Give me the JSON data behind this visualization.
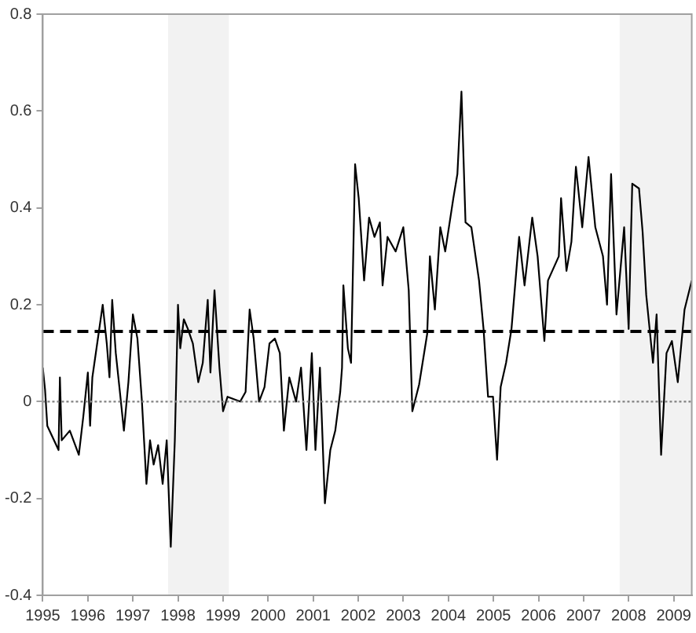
{
  "chart_data": {
    "type": "line",
    "x": [
      1995.0,
      1995.05,
      1995.1,
      1995.35,
      1995.38,
      1995.42,
      1995.6,
      1995.8,
      1995.9,
      1996.0,
      1996.05,
      1996.1,
      1996.33,
      1996.42,
      1996.48,
      1996.54,
      1996.62,
      1996.7,
      1996.8,
      1996.9,
      1997.0,
      1997.1,
      1997.2,
      1997.3,
      1997.38,
      1997.46,
      1997.56,
      1997.66,
      1997.75,
      1997.84,
      1997.93,
      1998.0,
      1998.05,
      1998.13,
      1998.22,
      1998.33,
      1998.45,
      1998.55,
      1998.66,
      1998.72,
      1998.81,
      1998.92,
      1999.0,
      1999.1,
      1999.38,
      1999.5,
      1999.59,
      1999.68,
      1999.8,
      1999.92,
      2000.03,
      2000.15,
      2000.26,
      2000.35,
      2000.47,
      2000.62,
      2000.73,
      2000.85,
      2000.97,
      2001.05,
      2001.15,
      2001.26,
      2001.38,
      2001.49,
      2001.6,
      2001.64,
      2001.67,
      2001.77,
      2001.84,
      2001.93,
      2002.01,
      2002.13,
      2002.24,
      2002.36,
      2002.48,
      2002.54,
      2002.65,
      2002.83,
      2003.0,
      2003.12,
      2003.2,
      2003.35,
      2003.53,
      2003.59,
      2003.7,
      2003.82,
      2003.93,
      2004.11,
      2004.2,
      2004.29,
      2004.38,
      2004.51,
      2004.68,
      2004.78,
      2004.88,
      2004.99,
      2005.08,
      2005.16,
      2005.28,
      2005.4,
      2005.57,
      2005.69,
      2005.86,
      2005.98,
      2006.13,
      2006.21,
      2006.45,
      2006.5,
      2006.62,
      2006.73,
      2006.83,
      2006.97,
      2007.11,
      2007.26,
      2007.43,
      2007.52,
      2007.61,
      2007.73,
      2007.9,
      2008.0,
      2008.08,
      2008.23,
      2008.31,
      2008.39,
      2008.54,
      2008.62,
      2008.72,
      2008.84,
      2008.96,
      2009.09,
      2009.24,
      2009.4
    ],
    "series": [
      {
        "color": "#000000",
        "values": [
          0.07,
          0.025,
          -0.05,
          -0.1,
          0.05,
          -0.08,
          -0.06,
          -0.11,
          -0.03,
          0.06,
          -0.05,
          0.05,
          0.2,
          0.12,
          0.05,
          0.21,
          0.1,
          0.03,
          -0.06,
          0.04,
          0.18,
          0.13,
          0.0,
          -0.17,
          -0.08,
          -0.13,
          -0.09,
          -0.17,
          -0.08,
          -0.3,
          -0.08,
          0.2,
          0.11,
          0.17,
          0.15,
          0.12,
          0.04,
          0.08,
          0.21,
          0.06,
          0.23,
          0.07,
          -0.02,
          0.01,
          0.0,
          0.02,
          0.19,
          0.13,
          0.0,
          0.03,
          0.12,
          0.13,
          0.1,
          -0.06,
          0.05,
          0.0,
          0.07,
          -0.1,
          0.1,
          -0.1,
          0.07,
          -0.21,
          -0.1,
          -0.06,
          0.02,
          0.07,
          0.24,
          0.11,
          0.08,
          0.49,
          0.42,
          0.25,
          0.38,
          0.34,
          0.37,
          0.24,
          0.34,
          0.31,
          0.36,
          0.23,
          -0.02,
          0.035,
          0.14,
          0.3,
          0.19,
          0.36,
          0.31,
          0.42,
          0.47,
          0.64,
          0.37,
          0.36,
          0.25,
          0.15,
          0.01,
          0.01,
          -0.12,
          0.03,
          0.08,
          0.15,
          0.34,
          0.24,
          0.38,
          0.3,
          0.125,
          0.25,
          0.3,
          0.42,
          0.27,
          0.33,
          0.485,
          0.36,
          0.505,
          0.36,
          0.3,
          0.2,
          0.47,
          0.18,
          0.36,
          0.15,
          0.45,
          0.44,
          0.35,
          0.22,
          0.08,
          0.18,
          -0.11,
          0.1,
          0.125,
          0.04,
          0.19,
          0.25
        ]
      }
    ],
    "xlim": [
      1995,
      2009.4
    ],
    "xticks": [
      1995,
      1996,
      1997,
      1998,
      1999,
      2000,
      2001,
      2002,
      2003,
      2004,
      2005,
      2006,
      2007,
      2008,
      2009
    ],
    "ylim": [
      -0.4,
      0.8
    ],
    "yticks": [
      -0.4,
      -0.2,
      0,
      0.2,
      0.4,
      0.6,
      0.8
    ],
    "grid": false,
    "ref_lines": [
      {
        "axis": "y",
        "value": 0.145,
        "color": "#000000",
        "line_style": "dashed"
      },
      {
        "axis": "y",
        "value": 0,
        "color": "#808080",
        "line_style": "dotted"
      }
    ],
    "bands": [
      {
        "axis": "x",
        "from": 1997.78,
        "to": 1999.13,
        "color": "#f2f2f2"
      },
      {
        "axis": "x",
        "from": 2007.8,
        "to": 2009.4,
        "color": "#f2f2f2"
      }
    ]
  }
}
